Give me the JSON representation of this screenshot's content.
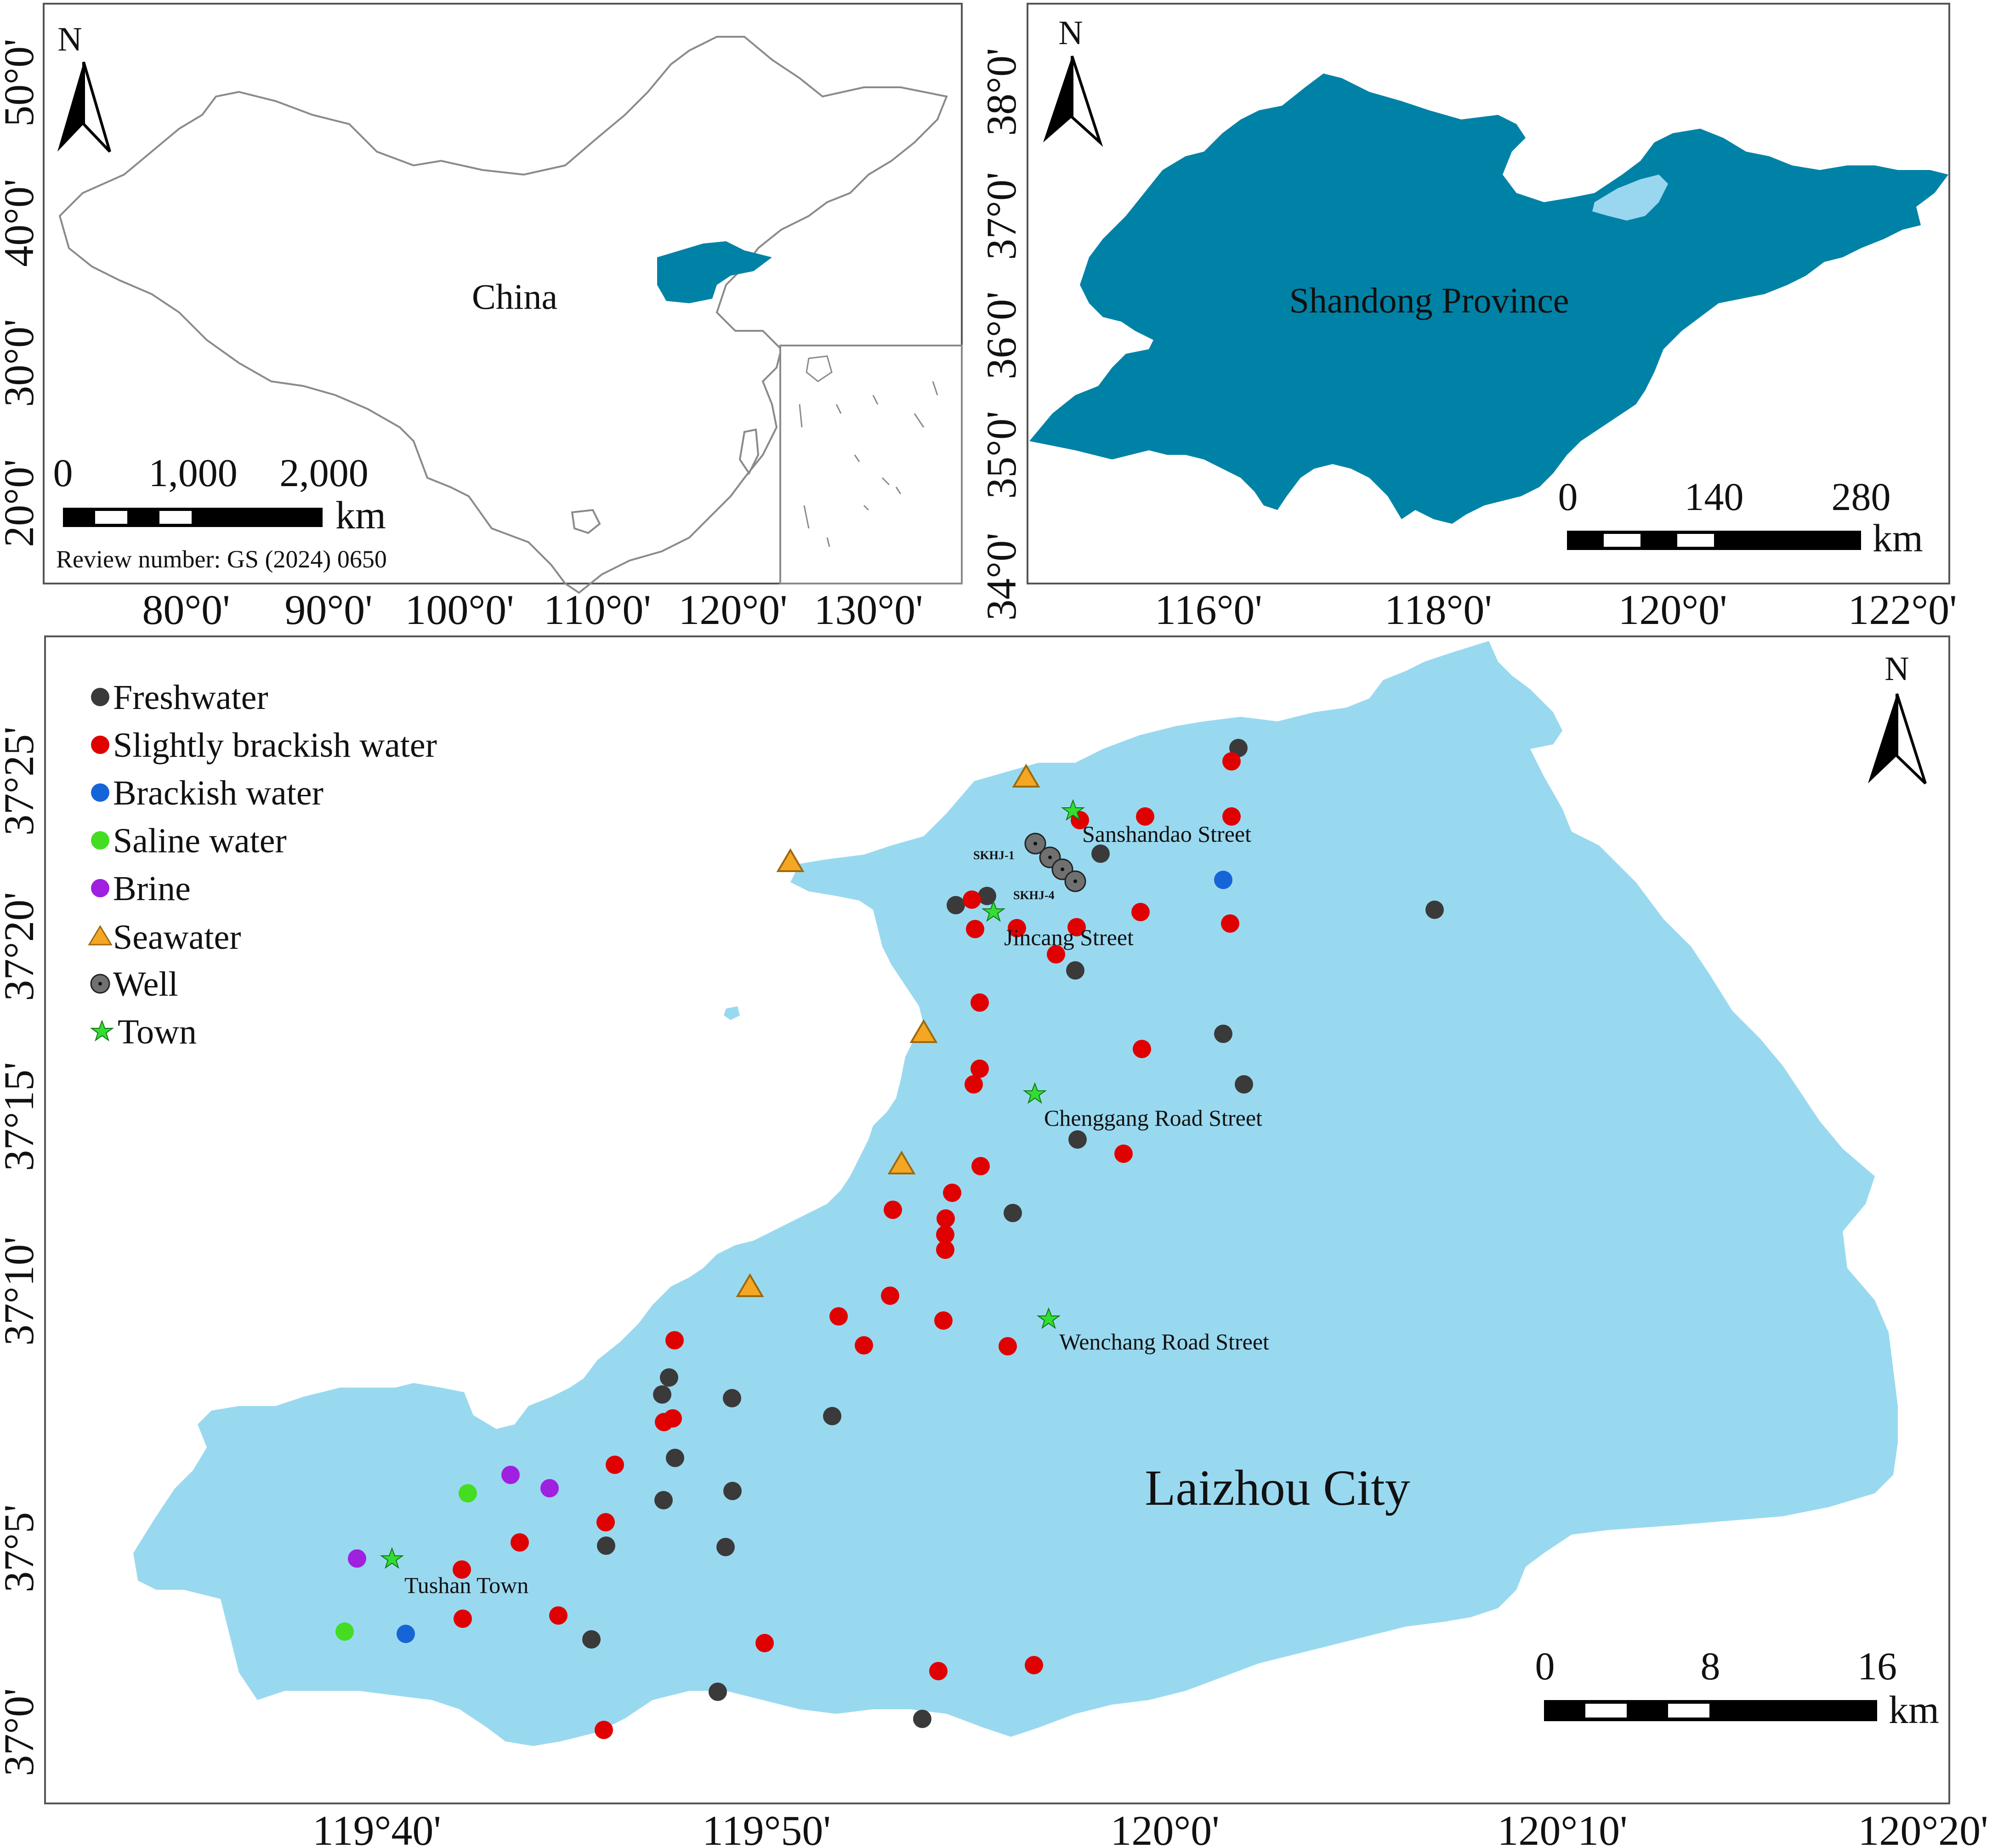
{
  "china": {
    "label": "China",
    "review": "Review number: GS (2024) 0650",
    "north": "N",
    "scale": [
      "0",
      "1,000",
      "2,000"
    ],
    "scale_unit": "km",
    "lon_ticks": [
      "80°0'",
      "90°0'",
      "100°0'",
      "110°0'",
      "120°0'",
      "130°0'"
    ],
    "lat_ticks": [
      "50°0'",
      "40°0'",
      "30°0'",
      "20°0'"
    ],
    "colors": {
      "outline": "#8a8a8a",
      "highlight": "#0082a6"
    }
  },
  "shandong": {
    "label": "Shandong Province",
    "north": "N",
    "scale": [
      "0",
      "140",
      "280"
    ],
    "scale_unit": "km",
    "lon_ticks": [
      "116°0'",
      "118°0'",
      "120°0'",
      "122°0'"
    ],
    "lat_ticks": [
      "38°0'",
      "37°0'",
      "36°0'",
      "35°0'",
      "34°0'"
    ],
    "colors": {
      "province": "#0082a6",
      "laizhou": "#99d6ef"
    }
  },
  "laizhou": {
    "label": "Laizhou City",
    "north": "N",
    "scale": [
      "0",
      "8",
      "16"
    ],
    "scale_unit": "km",
    "lon_ticks": [
      "119°40'",
      "119°50'",
      "120°0'",
      "120°10'",
      "120°20'"
    ],
    "lat_ticks": [
      "37°25'",
      "37°20'",
      "37°15'",
      "37°10'",
      "37°5'",
      "37°0'"
    ],
    "colors": {
      "land": "#99d9f0"
    },
    "legend": [
      {
        "label": "Freshwater",
        "marker": "circle",
        "color": "#3a3a3a"
      },
      {
        "label": "Slightly brackish water",
        "marker": "circle",
        "color": "#e00000"
      },
      {
        "label": "Brackish water",
        "marker": "circle",
        "color": "#1565d8"
      },
      {
        "label": "Saline water",
        "marker": "circle",
        "color": "#44dd22"
      },
      {
        "label": "Brine",
        "marker": "circle",
        "color": "#a020e0"
      },
      {
        "label": "Seawater",
        "marker": "triangle",
        "color": "#f5a623"
      },
      {
        "label": "Well",
        "marker": "well",
        "color": "#707070"
      },
      {
        "label": "Town",
        "marker": "star",
        "color": "#33dd33"
      }
    ],
    "towns": [
      "Sanshandao Street",
      "Jincang Street",
      "Chenggang Road Street",
      "Wenchang Road Street",
      "Tushan Town"
    ],
    "wells": [
      "SKHJ-1",
      "SKHJ-4"
    ]
  }
}
